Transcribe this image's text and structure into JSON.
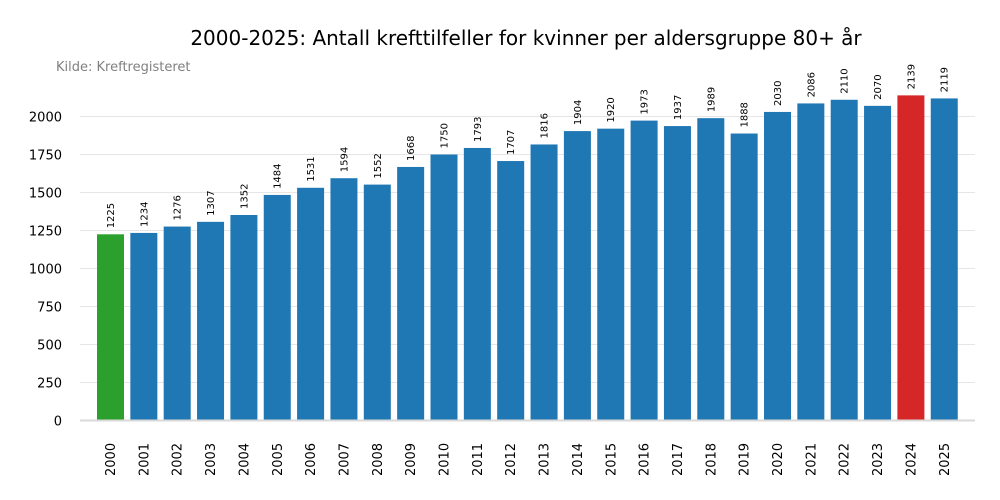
{
  "chart_data": {
    "type": "bar",
    "title": "2000-2025: Antall krefttilfeller for kvinner per aldersgruppe 80+ år",
    "subtitle": "Kilde: Kreftregisteret",
    "xlabel": "",
    "ylabel": "",
    "ylim": [
      0,
      2150
    ],
    "yticks": [
      0,
      250,
      500,
      750,
      1000,
      1250,
      1500,
      1750,
      2000
    ],
    "grid": true,
    "categories": [
      "2000",
      "2001",
      "2002",
      "2003",
      "2004",
      "2005",
      "2006",
      "2007",
      "2008",
      "2009",
      "2010",
      "2011",
      "2012",
      "2013",
      "2014",
      "2015",
      "2016",
      "2017",
      "2018",
      "2019",
      "2020",
      "2021",
      "2022",
      "2023",
      "2024",
      "2025"
    ],
    "values": [
      1225,
      1234,
      1276,
      1307,
      1352,
      1484,
      1531,
      1594,
      1552,
      1668,
      1750,
      1793,
      1707,
      1816,
      1904,
      1920,
      1973,
      1937,
      1989,
      1888,
      2030,
      2086,
      2110,
      2070,
      2139,
      2119
    ],
    "colors": {
      "default": "#1f77b4",
      "min_highlight": "#2ca02c",
      "max_highlight": "#d62728",
      "grid": "#e6e6e6",
      "axis": "#d9d9d9"
    },
    "highlight": {
      "2000": "min_highlight",
      "2024": "max_highlight"
    }
  }
}
